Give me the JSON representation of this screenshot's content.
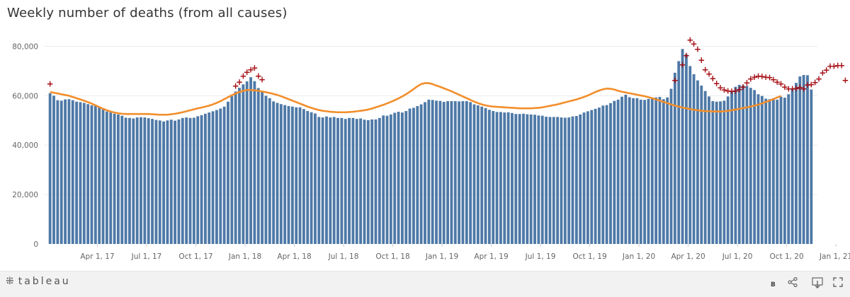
{
  "title": "Weekly number of deaths (from all causes)",
  "footer": {
    "logo_text": "tableau",
    "brand_letter": "B"
  },
  "chart_data": {
    "type": "bar",
    "ylim": [
      0,
      85000
    ],
    "y_ticks": [
      0,
      20000,
      40000,
      60000,
      80000
    ],
    "y_tick_labels": [
      "0",
      "20,000",
      "40,000",
      "60,000",
      "80,000"
    ],
    "x_tick_labels": [
      "Apr 1, 17",
      "Jul 1, 17",
      "Oct 1, 17",
      "Jan 1, 18",
      "Apr 1, 18",
      "Jul 1, 18",
      "Oct 1, 18",
      "Jan 1, 19",
      "Apr 1, 19",
      "Jul 1, 19",
      "Oct 1, 19",
      "Jan 1, 20",
      "Apr 1, 20",
      "Jul 1, 20",
      "Oct 1, 20",
      "Jan 1, 21"
    ],
    "x_tick_weeks": [
      13,
      26,
      39,
      52,
      65,
      78,
      91,
      104,
      117,
      130,
      143,
      156,
      169,
      182,
      195,
      208
    ],
    "grid": true,
    "colors": {
      "bars": "#4e79a7",
      "expected_line": "#f28e2b",
      "excess_marker": "#a50f15"
    },
    "weekly_deaths": [
      61000,
      60000,
      58200,
      58000,
      58500,
      58600,
      58200,
      57600,
      57400,
      57100,
      56600,
      56100,
      56000,
      55300,
      54500,
      53600,
      53200,
      52700,
      52400,
      51900,
      51100,
      51000,
      50800,
      51200,
      51300,
      51200,
      50900,
      50600,
      50200,
      50000,
      49600,
      50000,
      50300,
      49900,
      50400,
      51000,
      51200,
      51000,
      51100,
      51700,
      52100,
      52700,
      53200,
      53700,
      54200,
      54800,
      55600,
      57600,
      59800,
      61700,
      63200,
      64600,
      65800,
      67500,
      65900,
      63100,
      61400,
      60000,
      59000,
      57700,
      57100,
      56600,
      56200,
      55800,
      55600,
      55300,
      55300,
      54600,
      53800,
      53300,
      52800,
      51400,
      51200,
      51600,
      51200,
      51400,
      51000,
      51000,
      50600,
      51000,
      51000,
      50600,
      50800,
      50300,
      50100,
      50400,
      50400,
      51000,
      52000,
      51900,
      52400,
      53100,
      53500,
      53200,
      53800,
      54800,
      55100,
      55800,
      56500,
      57400,
      58400,
      58300,
      58000,
      57900,
      57500,
      57800,
      57800,
      57800,
      57700,
      57800,
      57800,
      57400,
      56500,
      56100,
      55600,
      55000,
      54300,
      53800,
      53400,
      53400,
      53200,
      53300,
      53000,
      52600,
      52600,
      52700,
      52500,
      52400,
      52300,
      52000,
      51900,
      51500,
      51400,
      51400,
      51400,
      51200,
      51100,
      51200,
      51600,
      51800,
      52400,
      53200,
      53700,
      54200,
      54700,
      55200,
      56000,
      56200,
      57000,
      57900,
      58400,
      59600,
      60400,
      59400,
      59000,
      59000,
      58400,
      58300,
      58700,
      58800,
      59300,
      59500,
      58600,
      59300,
      62800,
      69300,
      74000,
      78900,
      76800,
      72000,
      68700,
      66200,
      64100,
      61900,
      59700,
      57800,
      57600,
      57700,
      58000,
      59700,
      62000,
      63600,
      64400,
      64200,
      64000,
      63200,
      62300,
      60600,
      59900,
      58800,
      58600,
      59000,
      58400,
      59600,
      59200,
      60600,
      62700,
      65200,
      67800,
      68400,
      68300,
      62500
    ],
    "expected_deaths": [
      61500,
      61200,
      60900,
      60600,
      60300,
      60000,
      59500,
      59000,
      58500,
      58000,
      57400,
      56800,
      56100,
      55400,
      54700,
      54100,
      53600,
      53200,
      52900,
      52700,
      52600,
      52600,
      52600,
      52600,
      52600,
      52600,
      52600,
      52500,
      52400,
      52300,
      52300,
      52300,
      52500,
      52700,
      53000,
      53300,
      53700,
      54100,
      54500,
      54900,
      55200,
      55600,
      56000,
      56500,
      57100,
      57800,
      58600,
      59400,
      60200,
      60900,
      61500,
      62000,
      62300,
      62300,
      62200,
      62000,
      61700,
      61400,
      61100,
      60700,
      60300,
      59800,
      59200,
      58600,
      58000,
      57400,
      56800,
      56200,
      55600,
      55100,
      54600,
      54200,
      53900,
      53700,
      53500,
      53400,
      53300,
      53300,
      53300,
      53400,
      53500,
      53700,
      53900,
      54100,
      54400,
      54800,
      55300,
      55800,
      56300,
      56900,
      57500,
      58200,
      58900,
      59700,
      60600,
      61600,
      62700,
      63800,
      64700,
      65100,
      65100,
      64700,
      64100,
      63600,
      63000,
      62400,
      61800,
      61100,
      60400,
      59700,
      59000,
      58300,
      57600,
      57000,
      56500,
      56100,
      55800,
      55600,
      55500,
      55400,
      55300,
      55200,
      55100,
      55000,
      54900,
      54900,
      54900,
      54900,
      55000,
      55100,
      55300,
      55600,
      55900,
      56200,
      56500,
      56900,
      57300,
      57700,
      58100,
      58500,
      59000,
      59500,
      60100,
      60800,
      61500,
      62100,
      62600,
      62900,
      62800,
      62500,
      62000,
      61600,
      61300,
      61000,
      60700,
      60400,
      60100,
      59800,
      59400,
      59000,
      58500,
      58000,
      57500,
      57000,
      56500,
      56000,
      55600,
      55200,
      54900,
      54600,
      54300,
      54100,
      53900,
      53800,
      53700,
      53600,
      53600,
      53600,
      53700,
      53900,
      54100,
      54400,
      54700,
      55000,
      55300,
      55600,
      56000,
      56400,
      56900,
      57500,
      58000,
      58600,
      59300,
      59900
    ],
    "excess_markers": [
      [
        0,
        64800
      ],
      [
        49,
        64000
      ],
      [
        50,
        65600
      ],
      [
        51,
        68000
      ],
      [
        52,
        69500
      ],
      [
        53,
        70600
      ],
      [
        54,
        71200
      ],
      [
        55,
        68000
      ],
      [
        56,
        66600
      ],
      [
        165,
        66200
      ],
      [
        167,
        72600
      ],
      [
        168,
        76200
      ],
      [
        169,
        82600
      ],
      [
        170,
        81000
      ],
      [
        171,
        78800
      ],
      [
        172,
        74400
      ],
      [
        173,
        70600
      ],
      [
        174,
        68800
      ],
      [
        175,
        67000
      ],
      [
        176,
        65000
      ],
      [
        177,
        63200
      ],
      [
        178,
        62400
      ],
      [
        179,
        62000
      ],
      [
        180,
        61800
      ],
      [
        181,
        62000
      ],
      [
        182,
        62600
      ],
      [
        183,
        63600
      ],
      [
        184,
        65200
      ],
      [
        185,
        66800
      ],
      [
        186,
        67600
      ],
      [
        187,
        68000
      ],
      [
        188,
        67800
      ],
      [
        189,
        67600
      ],
      [
        190,
        67400
      ],
      [
        191,
        66600
      ],
      [
        192,
        65600
      ],
      [
        193,
        64800
      ],
      [
        194,
        63600
      ],
      [
        195,
        62800
      ],
      [
        196,
        62800
      ],
      [
        197,
        63000
      ],
      [
        198,
        63400
      ],
      [
        199,
        62800
      ],
      [
        200,
        64400
      ],
      [
        201,
        64600
      ],
      [
        202,
        65400
      ],
      [
        203,
        66800
      ],
      [
        204,
        69200
      ],
      [
        205,
        70400
      ],
      [
        206,
        72000
      ],
      [
        207,
        72000
      ],
      [
        208,
        72200
      ],
      [
        209,
        72200
      ],
      [
        210,
        66200
      ]
    ]
  }
}
